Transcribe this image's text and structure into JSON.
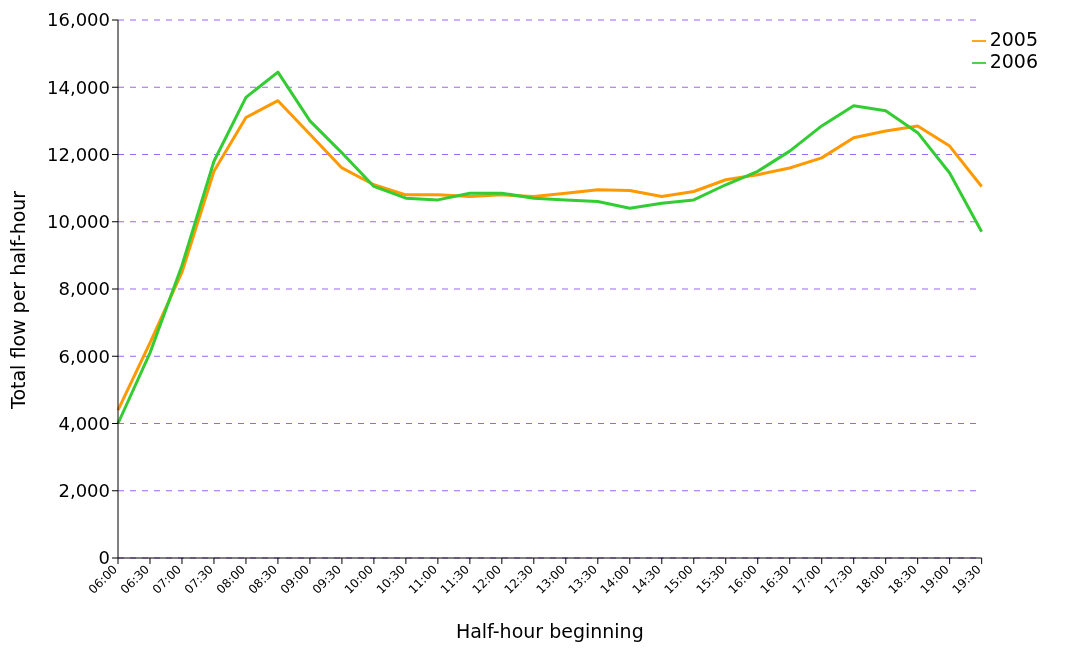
{
  "chart_data": {
    "type": "line",
    "xlabel": "Half-hour beginning",
    "ylabel": "Total flow per half-hour",
    "categories": [
      "06:00",
      "06:30",
      "07:00",
      "07:30",
      "08:00",
      "08:30",
      "09:00",
      "09:30",
      "10:00",
      "10:30",
      "11:00",
      "11:30",
      "12:00",
      "12:30",
      "13:00",
      "13:30",
      "14:00",
      "14:30",
      "15:00",
      "15:30",
      "16:00",
      "16:30",
      "17:00",
      "17:30",
      "18:00",
      "18:30",
      "19:00",
      "19:30"
    ],
    "series": [
      {
        "name": "2005",
        "color": "#ff9900",
        "values": [
          4400,
          6400,
          8500,
          11500,
          13100,
          13600,
          12600,
          11600,
          11100,
          10800,
          10800,
          10750,
          10800,
          10750,
          10850,
          10950,
          10930,
          10750,
          10900,
          11250,
          11400,
          11600,
          11900,
          12500,
          12700,
          12850,
          12250,
          11050
        ]
      },
      {
        "name": "2006",
        "color": "#33cc33",
        "values": [
          4000,
          6100,
          8700,
          11800,
          13700,
          14450,
          13000,
          12050,
          11050,
          10700,
          10650,
          10850,
          10850,
          10700,
          10650,
          10600,
          10400,
          10550,
          10650,
          11100,
          11500,
          12100,
          12850,
          13450,
          13300,
          12650,
          11450,
          9700
        ]
      }
    ],
    "ylim": [
      0,
      16000
    ],
    "yticks": [
      {
        "value": 0,
        "label": "0"
      },
      {
        "value": 2000,
        "label": "2,000"
      },
      {
        "value": 4000,
        "label": "4,000"
      },
      {
        "value": 6000,
        "label": "6,000"
      },
      {
        "value": 8000,
        "label": "8,000"
      },
      {
        "value": 10000,
        "label": "10,000"
      },
      {
        "value": 12000,
        "label": "12,000"
      },
      {
        "value": 14000,
        "label": "14,000"
      },
      {
        "value": 16000,
        "label": "16,000"
      }
    ],
    "grid": "y",
    "legend": "top right",
    "marker": "none",
    "line_style": "solid"
  }
}
